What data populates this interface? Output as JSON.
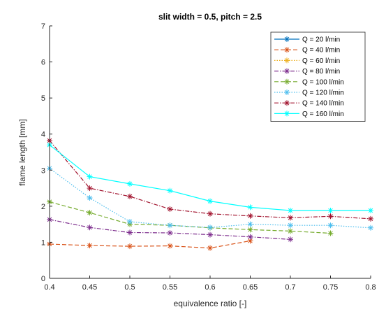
{
  "chart_data": {
    "type": "line",
    "title": "slit width = 0.5, pitch = 2.5",
    "xlabel": "equivalence ratio [-]",
    "ylabel": "flame length [mm]",
    "xlim": [
      0.4,
      0.8
    ],
    "ylim": [
      0,
      7
    ],
    "xticks": [
      "0.4",
      "0.45",
      "0.5",
      "0.55",
      "0.6",
      "0.65",
      "0.7",
      "0.75",
      "0.8"
    ],
    "yticks": [
      "0",
      "1",
      "2",
      "3",
      "4",
      "5",
      "6",
      "7"
    ],
    "grid": false,
    "legend_position": "top-right",
    "series": [
      {
        "name": "Q = 20 l/min",
        "color": "#0072bd",
        "line_style": "solid",
        "marker": "asterisk",
        "x": [],
        "y": []
      },
      {
        "name": "Q = 40 l/min",
        "color": "#d95319",
        "line_style": "dashed",
        "marker": "asterisk",
        "x": [
          0.4,
          0.45,
          0.5,
          0.55,
          0.6,
          0.65
        ],
        "y": [
          0.95,
          0.91,
          0.89,
          0.9,
          0.84,
          1.04
        ]
      },
      {
        "name": "Q = 60 l/min",
        "color": "#edb120",
        "line_style": "dotted",
        "marker": "asterisk",
        "x": [],
        "y": []
      },
      {
        "name": "Q = 80 l/min",
        "color": "#7e2f8e",
        "line_style": "dashdot",
        "marker": "asterisk",
        "x": [
          0.4,
          0.45,
          0.5,
          0.55,
          0.6,
          0.65,
          0.7
        ],
        "y": [
          1.63,
          1.41,
          1.27,
          1.26,
          1.21,
          1.15,
          1.08
        ]
      },
      {
        "name": "Q = 100 l/min",
        "color": "#77ac30",
        "line_style": "dashed",
        "marker": "asterisk",
        "x": [
          0.4,
          0.45,
          0.5,
          0.55,
          0.6,
          0.65,
          0.7,
          0.75
        ],
        "y": [
          2.12,
          1.82,
          1.5,
          1.47,
          1.4,
          1.35,
          1.31,
          1.25
        ]
      },
      {
        "name": "Q = 120 l/min",
        "color": "#4dbeee",
        "line_style": "dotted",
        "marker": "asterisk",
        "x": [
          0.4,
          0.45,
          0.5,
          0.55,
          0.6,
          0.65,
          0.7,
          0.75,
          0.8
        ],
        "y": [
          3.05,
          2.23,
          1.57,
          1.47,
          1.41,
          1.5,
          1.47,
          1.47,
          1.4
        ]
      },
      {
        "name": "Q = 140 l/min",
        "color": "#a2142f",
        "line_style": "dashdot",
        "marker": "asterisk",
        "x": [
          0.4,
          0.45,
          0.5,
          0.55,
          0.6,
          0.65,
          0.7,
          0.75,
          0.8
        ],
        "y": [
          3.82,
          2.5,
          2.27,
          1.92,
          1.79,
          1.73,
          1.68,
          1.72,
          1.65
        ]
      },
      {
        "name": "Q = 160 l/min",
        "color": "#00ffff",
        "line_style": "solid",
        "marker": "asterisk",
        "x": [
          0.4,
          0.45,
          0.5,
          0.55,
          0.6,
          0.65,
          0.7,
          0.75,
          0.8
        ],
        "y": [
          3.7,
          2.82,
          2.62,
          2.43,
          2.14,
          1.97,
          1.88,
          1.88,
          1.88
        ]
      }
    ]
  }
}
